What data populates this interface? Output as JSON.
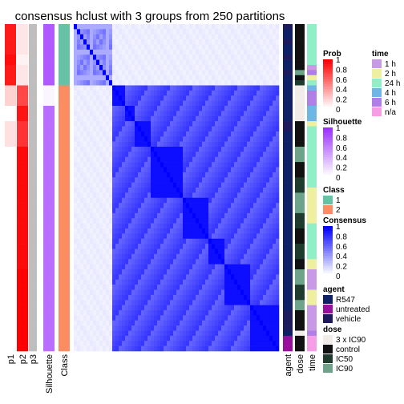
{
  "chart_data": {
    "type": "heatmap",
    "title": "consensus hclust with 3 groups from 250 partitions",
    "rows": 64,
    "column_labels": [
      "p1",
      "p2",
      "p3",
      "Silhouette",
      "Class",
      "agent",
      "dose",
      "time"
    ],
    "p1": [
      0.9,
      0.9,
      0.9,
      0.9,
      0.9,
      0.9,
      0.95,
      0.95,
      0.9,
      0.9,
      0.9,
      0.9,
      0.18,
      0.18,
      0.18,
      0.18,
      0.0,
      0.0,
      0.0,
      0.12,
      0.12,
      0.12,
      0.12,
      0.12,
      0.0,
      0.0,
      0.0,
      0.0,
      0.0,
      0.0,
      0.0,
      0.0,
      0.0,
      0.0,
      0.0,
      0.0,
      0.0,
      0.0,
      0.0,
      0.0,
      0.0,
      0.0,
      0.0,
      0.0,
      0.0,
      0.0,
      0.0,
      0.0,
      0.0,
      0.0,
      0.0,
      0.0,
      0.0,
      0.0,
      0.0,
      0.0,
      0.0,
      0.0,
      0.0,
      0.0,
      0.0,
      0.0,
      0.0,
      0.0
    ],
    "p2": [
      0.1,
      0.1,
      0.1,
      0.1,
      0.1,
      0.1,
      0.05,
      0.05,
      0.1,
      0.1,
      0.1,
      0.1,
      0.72,
      0.72,
      0.72,
      0.72,
      0.92,
      0.92,
      0.92,
      0.8,
      0.8,
      0.8,
      0.8,
      0.8,
      0.96,
      0.96,
      0.96,
      0.96,
      0.96,
      0.96,
      0.96,
      0.96,
      0.96,
      0.96,
      0.96,
      0.96,
      0.96,
      0.96,
      0.96,
      0.96,
      0.96,
      0.96,
      0.96,
      0.96,
      0.96,
      0.96,
      0.96,
      0.96,
      1.0,
      1.0,
      1.0,
      1.0,
      1.0,
      1.0,
      1.0,
      1.0,
      1.0,
      1.0,
      1.0,
      1.0,
      1.0,
      1.0,
      1.0,
      1.0
    ],
    "p3": [
      0,
      0,
      0,
      0,
      0,
      0,
      0,
      0,
      0,
      0,
      0,
      0,
      0,
      0,
      0,
      0,
      0,
      0,
      0,
      0,
      0,
      0,
      0,
      0,
      0,
      0,
      0,
      0,
      0,
      0,
      0,
      0,
      0,
      0,
      0,
      0,
      0,
      0,
      0,
      0,
      0,
      0,
      0,
      0,
      0,
      0,
      0,
      0,
      0,
      0,
      0,
      0,
      0,
      0,
      0,
      0,
      0,
      0,
      0,
      0,
      0,
      0,
      0,
      0
    ],
    "silhouette": [
      0.8,
      0.8,
      0.8,
      0.8,
      0.8,
      0.8,
      0.8,
      0.8,
      0.8,
      0.8,
      0.8,
      0.8,
      0.05,
      0.05,
      0.05,
      0.05,
      0.7,
      0.7,
      0.7,
      0.7,
      0.7,
      0.7,
      0.7,
      0.7,
      0.7,
      0.7,
      0.7,
      0.7,
      0.7,
      0.7,
      0.7,
      0.7,
      0.7,
      0.7,
      0.7,
      0.7,
      0.7,
      0.7,
      0.7,
      0.7,
      0.7,
      0.7,
      0.7,
      0.7,
      0.7,
      0.7,
      0.7,
      0.7,
      0.7,
      0.7,
      0.7,
      0.7,
      0.7,
      0.7,
      0.7,
      0.7,
      0.7,
      0.7,
      0.7,
      0.7,
      0.7,
      0.7,
      0.7,
      0.7
    ],
    "class": [
      1,
      1,
      1,
      1,
      1,
      1,
      1,
      1,
      1,
      1,
      1,
      1,
      2,
      2,
      2,
      2,
      2,
      2,
      2,
      2,
      2,
      2,
      2,
      2,
      2,
      2,
      2,
      2,
      2,
      2,
      2,
      2,
      2,
      2,
      2,
      2,
      2,
      2,
      2,
      2,
      2,
      2,
      2,
      2,
      2,
      2,
      2,
      2,
      2,
      2,
      2,
      2,
      2,
      2,
      2,
      2,
      2,
      2,
      2,
      2,
      2,
      2,
      2,
      2
    ],
    "agent": [
      "vehicle",
      "R547",
      "R547",
      "vehicle",
      "R547",
      "R547",
      "vehicle",
      "R547",
      "R547",
      "vehicle",
      "R547",
      "R547",
      "R547",
      "R547",
      "R547",
      "R547",
      "R547",
      "R547",
      "R547",
      "vehicle",
      "vehicle",
      "R547",
      "R547",
      "R547",
      "R547",
      "R547",
      "R547",
      "R547",
      "R547",
      "R547",
      "R547",
      "R547",
      "R547",
      "R547",
      "R547",
      "R547",
      "R547",
      "R547",
      "R547",
      "R547",
      "R547",
      "R547",
      "R547",
      "R547",
      "R547",
      "R547",
      "R547",
      "R547",
      "R547",
      "R547",
      "R547",
      "R547",
      "R547",
      "R547",
      "R547",
      "R547",
      "vehicle",
      "vehicle",
      "vehicle",
      "vehicle",
      "R547",
      "untreated",
      "untreated",
      "untreated"
    ],
    "dose": [
      "control",
      "control",
      "control",
      "control",
      "control",
      "control",
      "control",
      "control",
      "control",
      "IC90",
      "control",
      "IC50",
      "3 x IC90",
      "3 x IC90",
      "3 x IC90",
      "3 x IC90",
      "3 x IC90",
      "3 x IC90",
      "3 x IC90",
      "control",
      "control",
      "control",
      "control",
      "control",
      "IC90",
      "IC90",
      "IC90",
      "control",
      "control",
      "control",
      "IC50",
      "IC50",
      "IC50",
      "IC90",
      "IC90",
      "IC90",
      "IC90",
      "IC50",
      "IC50",
      "IC50",
      "control",
      "control",
      "control",
      "IC50",
      "IC50",
      "IC50",
      "control",
      "control",
      "IC90",
      "IC90",
      "IC90",
      "IC50",
      "IC50",
      "IC50",
      "IC90",
      "IC90",
      "control",
      "control",
      "control",
      "control",
      "3 x IC90",
      "control",
      "control",
      "control"
    ],
    "time": [
      "24 h",
      "24 h",
      "24 h",
      "24 h",
      "24 h",
      "24 h",
      "24 h",
      "24 h",
      "1 h",
      "6 h",
      "2 h",
      "24 h",
      "4 h",
      "6 h",
      "6 h",
      "6 h",
      "4 h",
      "4 h",
      "4 h",
      "2 h",
      "24 h",
      "24 h",
      "24 h",
      "24 h",
      "24 h",
      "24 h",
      "24 h",
      "24 h",
      "24 h",
      "24 h",
      "24 h",
      "24 h",
      "2 h",
      "2 h",
      "2 h",
      "2 h",
      "2 h",
      "2 h",
      "2 h",
      "24 h",
      "24 h",
      "24 h",
      "24 h",
      "24 h",
      "24 h",
      "24 h",
      "2 h",
      "2 h",
      "1 h",
      "1 h",
      "1 h",
      "1 h",
      "2 h",
      "2 h",
      "2 h",
      "1 h",
      "1 h",
      "1 h",
      "1 h",
      "1 h",
      "6 h",
      "n/a",
      "n/a",
      "n/a"
    ],
    "consensus_blocks": {
      "class1": {
        "size": 12,
        "within": 0.55,
        "diagonal": 1.0
      },
      "class2": {
        "size": 52,
        "subclusters": [
          4,
          3,
          5,
          10,
          8,
          5,
          8,
          9
        ],
        "within_sub": 0.95,
        "between_sub": 0.7
      },
      "between_classes": 0.05
    },
    "legends": [
      {
        "title": "Prob",
        "ticks": [
          "1",
          "0.8",
          "0.6",
          "0.4",
          "0.2",
          "0"
        ],
        "low": "#ffffff",
        "high": "#ff0000"
      },
      {
        "title": "Silhouette",
        "ticks": [
          "1",
          "0.8",
          "0.6",
          "0.4",
          "0.2",
          "0"
        ],
        "low": "#ffffff",
        "high": "#9b30ff"
      },
      {
        "title": "Class",
        "entries": [
          {
            "label": "1",
            "color": "#66c2a5"
          },
          {
            "label": "2",
            "color": "#fc8d62"
          }
        ]
      },
      {
        "title": "Consensus",
        "ticks": [
          "1",
          "0.8",
          "0.6",
          "0.4",
          "0.2",
          "0"
        ],
        "low": "#ffffff",
        "high": "#0000ff"
      },
      {
        "title": "agent",
        "entries": [
          {
            "label": "R547",
            "color": "#0e2166"
          },
          {
            "label": "untreated",
            "color": "#9a0e9e"
          },
          {
            "label": "vehicle",
            "color": "#1e1a5e"
          }
        ]
      },
      {
        "title": "dose",
        "entries": [
          {
            "label": "3 x IC90",
            "color": "#f2ece9"
          },
          {
            "label": "control",
            "color": "#111111"
          },
          {
            "label": "IC50",
            "color": "#1e3b2d"
          },
          {
            "label": "IC90",
            "color": "#6ea38a"
          }
        ]
      },
      {
        "title": "time",
        "entries": [
          {
            "label": "1 h",
            "color": "#c89ae6"
          },
          {
            "label": "2 h",
            "color": "#eef0a0"
          },
          {
            "label": "24 h",
            "color": "#8ff0c8"
          },
          {
            "label": "4 h",
            "color": "#6fb6e6"
          },
          {
            "label": "6 h",
            "color": "#b07fe6"
          },
          {
            "label": "n/a",
            "color": "#f59ee6"
          }
        ]
      }
    ]
  }
}
